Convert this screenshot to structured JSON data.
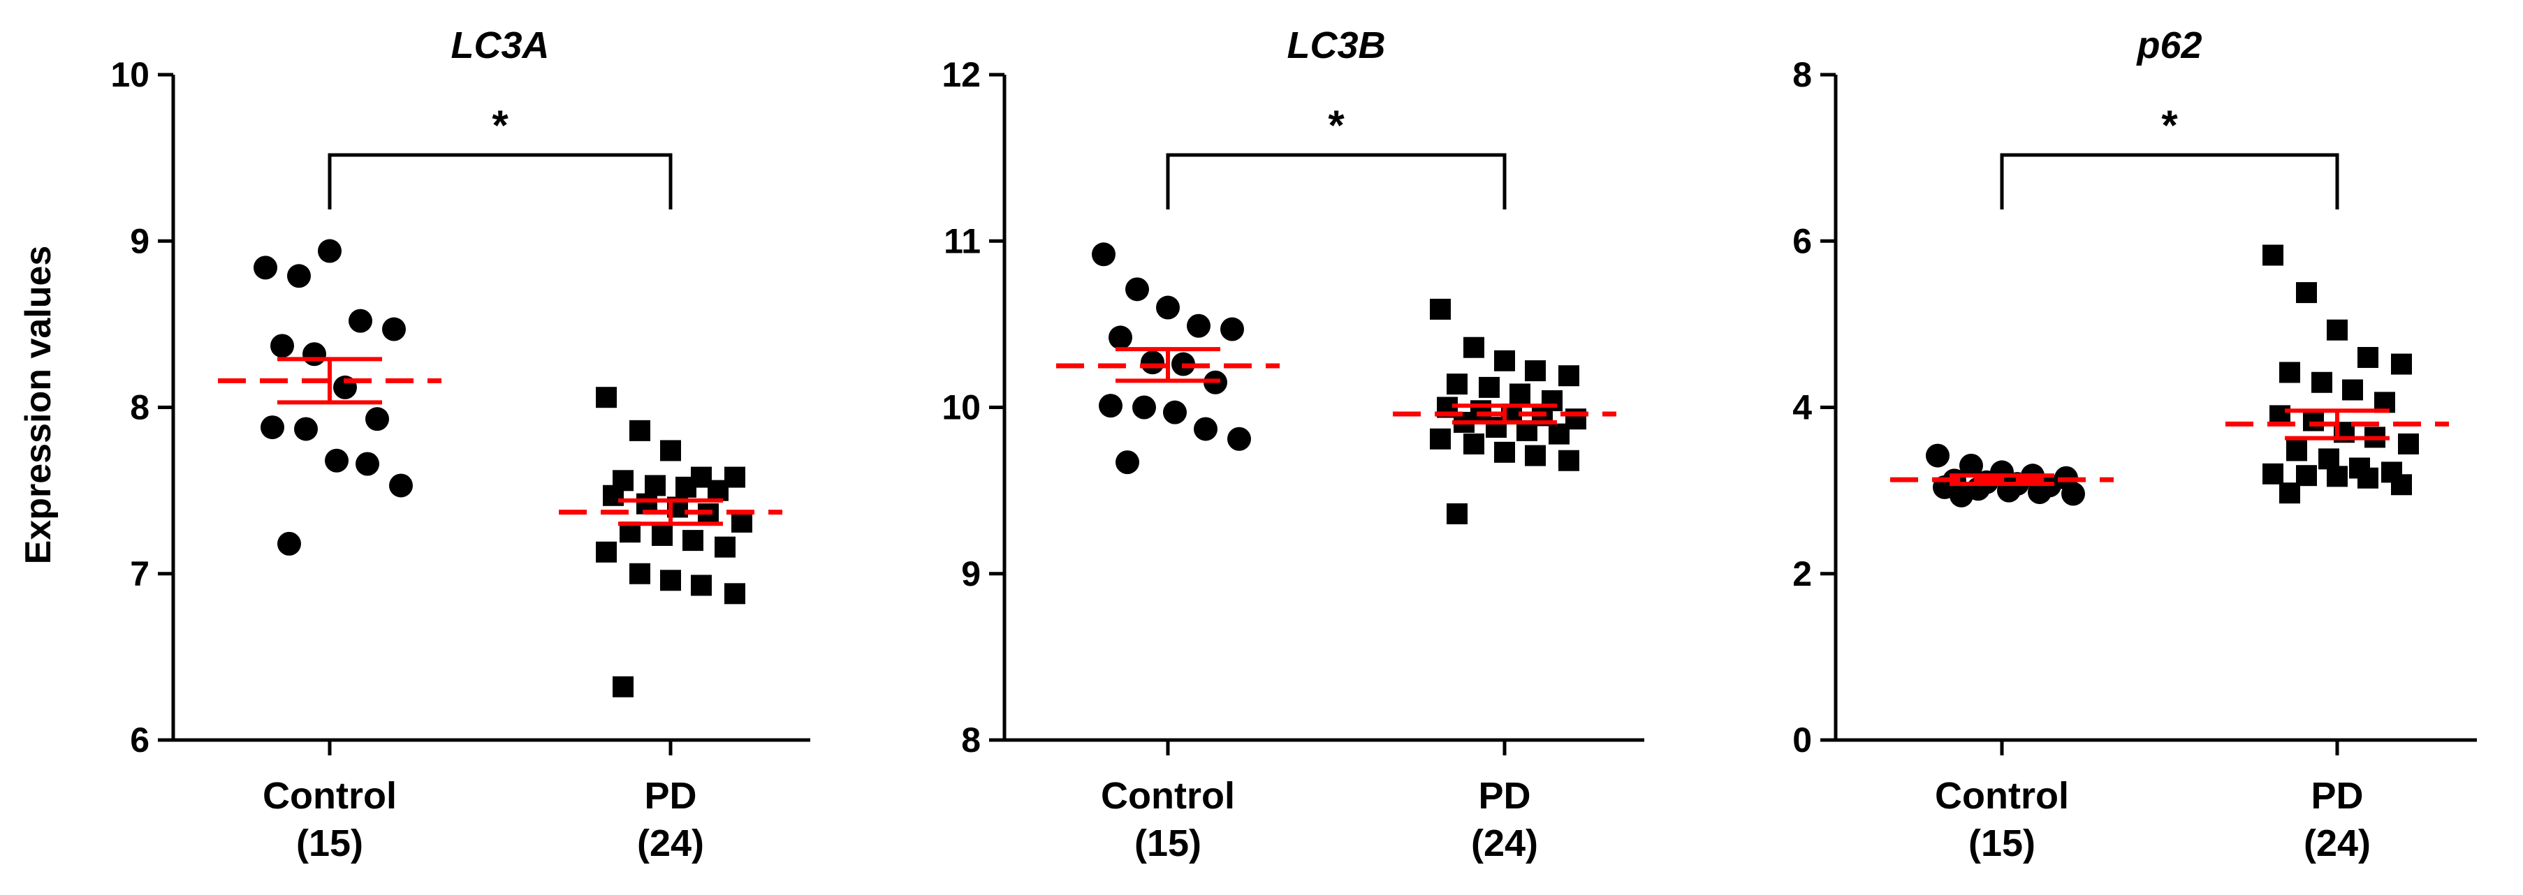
{
  "ylabel": "Expression values",
  "colors": {
    "points": "#000000",
    "mean_line": "#ff0000",
    "error_bar": "#ff0000",
    "axis": "#000000"
  },
  "chart_data": [
    {
      "type": "scatter",
      "title": "LC3A",
      "ylabel": "Expression values",
      "ylim": [
        6,
        10
      ],
      "yticks": [
        "6",
        "7",
        "8",
        "9",
        "10"
      ],
      "categories": [
        {
          "label": "Control",
          "n": "(15)",
          "marker": "circle",
          "mean": 8.16,
          "sem_low": 8.03,
          "sem_high": 8.29,
          "values": [
            8.84,
            8.79,
            8.94,
            8.52,
            8.47,
            8.37,
            8.32,
            8.12,
            7.93,
            7.88,
            7.87,
            7.68,
            7.66,
            7.53,
            7.18
          ]
        },
        {
          "label": "PD",
          "n": "(24)",
          "marker": "square",
          "mean": 7.37,
          "sem_low": 7.3,
          "sem_high": 7.44,
          "values": [
            8.06,
            7.86,
            7.74,
            7.58,
            7.58,
            7.56,
            7.53,
            7.52,
            7.5,
            7.47,
            7.42,
            7.4,
            7.36,
            7.31,
            7.25,
            7.23,
            7.2,
            7.16,
            7.13,
            7.0,
            6.96,
            6.93,
            6.88,
            6.32
          ]
        }
      ],
      "significance": "*"
    },
    {
      "type": "scatter",
      "title": "LC3B",
      "ylim": [
        8,
        12
      ],
      "yticks": [
        "8",
        "9",
        "10",
        "11",
        "12"
      ],
      "categories": [
        {
          "label": "Control",
          "n": "(15)",
          "marker": "circle",
          "mean": 10.25,
          "sem_low": 10.16,
          "sem_high": 10.35,
          "values": [
            10.92,
            10.71,
            10.6,
            10.49,
            10.47,
            10.42,
            10.27,
            10.26,
            10.15,
            10.01,
            10.0,
            9.97,
            9.87,
            9.81,
            9.67
          ]
        },
        {
          "label": "PD",
          "n": "(24)",
          "marker": "square",
          "mean": 9.96,
          "sem_low": 9.91,
          "sem_high": 10.01,
          "values": [
            10.59,
            10.36,
            10.28,
            10.22,
            10.19,
            10.14,
            10.12,
            10.08,
            10.04,
            10.0,
            9.98,
            9.96,
            9.95,
            9.93,
            9.91,
            9.88,
            9.86,
            9.84,
            9.81,
            9.78,
            9.73,
            9.71,
            9.68,
            9.36
          ]
        }
      ],
      "significance": "*"
    },
    {
      "type": "scatter",
      "title": "p62",
      "ylim": [
        0,
        8
      ],
      "yticks": [
        "0",
        "2",
        "4",
        "6",
        "8"
      ],
      "categories": [
        {
          "label": "Control",
          "n": "(15)",
          "marker": "circle",
          "mean": 3.13,
          "sem_low": 3.08,
          "sem_high": 3.18,
          "values": [
            3.42,
            3.3,
            3.22,
            3.18,
            3.15,
            3.12,
            3.1,
            3.08,
            3.06,
            3.04,
            3.02,
            3.0,
            2.98,
            2.96,
            2.94
          ]
        },
        {
          "label": "PD",
          "n": "(24)",
          "marker": "square",
          "mean": 3.8,
          "sem_low": 3.63,
          "sem_high": 3.96,
          "values": [
            5.83,
            5.38,
            4.93,
            4.6,
            4.52,
            4.42,
            4.3,
            4.21,
            4.06,
            3.9,
            3.84,
            3.7,
            3.64,
            3.56,
            3.48,
            3.38,
            3.27,
            3.22,
            3.2,
            3.18,
            3.17,
            3.15,
            3.07,
            2.97
          ]
        }
      ],
      "significance": "*"
    }
  ]
}
